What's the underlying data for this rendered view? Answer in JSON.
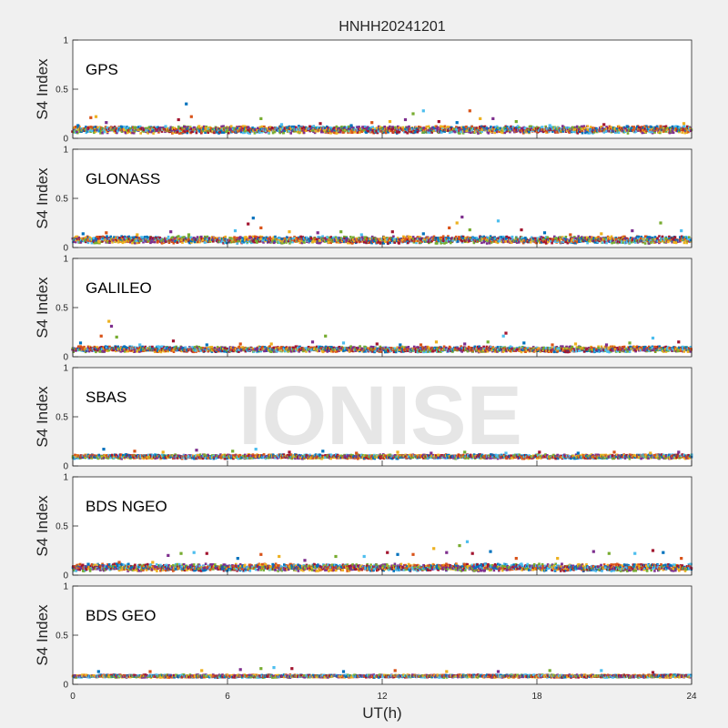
{
  "chart_data": {
    "type": "scatter",
    "title": "HNHH20241201",
    "watermark": "IONISE",
    "xlabel": "UT(h)",
    "ylabel": "S4 Index",
    "xlim": [
      0,
      24
    ],
    "ylim": [
      0,
      1
    ],
    "x_ticks": [
      "0",
      "6",
      "12",
      "18",
      "24"
    ],
    "x_tick_values": [
      0,
      6,
      12,
      18,
      24
    ],
    "y_ticks": [
      "0",
      "0.5",
      "1"
    ],
    "y_tick_values": [
      0,
      0.5,
      1
    ],
    "grid": false,
    "series_colors": [
      "#0072BD",
      "#D95319",
      "#EDB120",
      "#7E2F8E",
      "#77AC30",
      "#4DBEEE",
      "#A2142F"
    ],
    "panels": [
      {
        "label": "GPS",
        "baseline": 0.08,
        "noise": 0.05,
        "points": [
          [
            0.2,
            0.13
          ],
          [
            0.7,
            0.21
          ],
          [
            0.9,
            0.22
          ],
          [
            1.3,
            0.16
          ],
          [
            2.4,
            0.11
          ],
          [
            3.6,
            0.12
          ],
          [
            4.1,
            0.19
          ],
          [
            4.4,
            0.35
          ],
          [
            4.6,
            0.22
          ],
          [
            4.9,
            0.12
          ],
          [
            6.1,
            0.09
          ],
          [
            7.3,
            0.2
          ],
          [
            8.1,
            0.14
          ],
          [
            9.6,
            0.15
          ],
          [
            10.8,
            0.13
          ],
          [
            11.6,
            0.16
          ],
          [
            12.3,
            0.17
          ],
          [
            12.9,
            0.19
          ],
          [
            13.2,
            0.25
          ],
          [
            13.6,
            0.28
          ],
          [
            14.2,
            0.17
          ],
          [
            14.9,
            0.16
          ],
          [
            15.4,
            0.28
          ],
          [
            15.8,
            0.2
          ],
          [
            16.3,
            0.2
          ],
          [
            17.2,
            0.17
          ],
          [
            18.5,
            0.13
          ],
          [
            20.6,
            0.14
          ],
          [
            21.5,
            0.12
          ],
          [
            22.8,
            0.12
          ],
          [
            23.7,
            0.15
          ]
        ]
      },
      {
        "label": "GLONASS",
        "baseline": 0.07,
        "noise": 0.05,
        "points": [
          [
            0.4,
            0.14
          ],
          [
            1.3,
            0.15
          ],
          [
            2.5,
            0.13
          ],
          [
            3.8,
            0.16
          ],
          [
            4.5,
            0.13
          ],
          [
            6.3,
            0.17
          ],
          [
            6.8,
            0.24
          ],
          [
            7.0,
            0.3
          ],
          [
            7.3,
            0.2
          ],
          [
            8.4,
            0.16
          ],
          [
            9.5,
            0.15
          ],
          [
            10.4,
            0.16
          ],
          [
            11.2,
            0.13
          ],
          [
            12.4,
            0.16
          ],
          [
            13.6,
            0.14
          ],
          [
            14.6,
            0.2
          ],
          [
            14.9,
            0.25
          ],
          [
            15.1,
            0.31
          ],
          [
            15.4,
            0.18
          ],
          [
            16.5,
            0.27
          ],
          [
            17.4,
            0.18
          ],
          [
            18.3,
            0.15
          ],
          [
            19.3,
            0.13
          ],
          [
            20.5,
            0.14
          ],
          [
            21.7,
            0.17
          ],
          [
            22.8,
            0.25
          ],
          [
            23.6,
            0.17
          ]
        ]
      },
      {
        "label": "GALILEO",
        "baseline": 0.07,
        "noise": 0.04,
        "points": [
          [
            0.3,
            0.14
          ],
          [
            1.1,
            0.21
          ],
          [
            1.4,
            0.36
          ],
          [
            1.5,
            0.31
          ],
          [
            1.7,
            0.2
          ],
          [
            2.6,
            0.12
          ],
          [
            3.9,
            0.16
          ],
          [
            5.2,
            0.12
          ],
          [
            6.5,
            0.13
          ],
          [
            7.7,
            0.13
          ],
          [
            9.3,
            0.15
          ],
          [
            9.8,
            0.21
          ],
          [
            10.5,
            0.14
          ],
          [
            11.8,
            0.13
          ],
          [
            12.7,
            0.12
          ],
          [
            13.5,
            0.12
          ],
          [
            14.1,
            0.15
          ],
          [
            15.2,
            0.13
          ],
          [
            16.1,
            0.15
          ],
          [
            16.7,
            0.21
          ],
          [
            16.8,
            0.24
          ],
          [
            17.5,
            0.14
          ],
          [
            18.6,
            0.12
          ],
          [
            19.5,
            0.13
          ],
          [
            20.7,
            0.12
          ],
          [
            21.6,
            0.14
          ],
          [
            22.5,
            0.19
          ],
          [
            23.5,
            0.15
          ]
        ]
      },
      {
        "label": "SBAS",
        "baseline": 0.09,
        "noise": 0.03,
        "points": [
          [
            1.2,
            0.17
          ],
          [
            2.4,
            0.15
          ],
          [
            3.5,
            0.14
          ],
          [
            4.8,
            0.16
          ],
          [
            6.2,
            0.15
          ],
          [
            7.1,
            0.17
          ],
          [
            8.4,
            0.14
          ],
          [
            9.7,
            0.15
          ],
          [
            11.0,
            0.13
          ],
          [
            12.6,
            0.14
          ],
          [
            13.9,
            0.13
          ],
          [
            15.2,
            0.14
          ],
          [
            16.8,
            0.13
          ],
          [
            18.1,
            0.14
          ],
          [
            19.6,
            0.13
          ],
          [
            21.0,
            0.14
          ],
          [
            22.4,
            0.13
          ],
          [
            23.5,
            0.14
          ]
        ]
      },
      {
        "label": "BDS NGEO",
        "baseline": 0.07,
        "noise": 0.05,
        "points": [
          [
            0.6,
            0.11
          ],
          [
            1.8,
            0.13
          ],
          [
            3.1,
            0.13
          ],
          [
            3.7,
            0.2
          ],
          [
            4.2,
            0.22
          ],
          [
            4.7,
            0.23
          ],
          [
            5.2,
            0.22
          ],
          [
            6.4,
            0.17
          ],
          [
            7.3,
            0.21
          ],
          [
            8.0,
            0.19
          ],
          [
            9.0,
            0.15
          ],
          [
            10.2,
            0.19
          ],
          [
            11.3,
            0.19
          ],
          [
            12.2,
            0.23
          ],
          [
            12.6,
            0.21
          ],
          [
            13.2,
            0.21
          ],
          [
            14.0,
            0.27
          ],
          [
            14.5,
            0.23
          ],
          [
            15.0,
            0.3
          ],
          [
            15.3,
            0.34
          ],
          [
            15.5,
            0.22
          ],
          [
            16.2,
            0.24
          ],
          [
            17.2,
            0.17
          ],
          [
            18.8,
            0.17
          ],
          [
            20.2,
            0.24
          ],
          [
            20.8,
            0.22
          ],
          [
            21.8,
            0.22
          ],
          [
            22.5,
            0.25
          ],
          [
            22.9,
            0.23
          ],
          [
            23.6,
            0.17
          ]
        ]
      },
      {
        "label": "BDS GEO",
        "baseline": 0.08,
        "noise": 0.02,
        "points": [
          [
            1.0,
            0.13
          ],
          [
            3.0,
            0.13
          ],
          [
            5.0,
            0.14
          ],
          [
            6.5,
            0.15
          ],
          [
            7.3,
            0.16
          ],
          [
            7.8,
            0.17
          ],
          [
            8.5,
            0.16
          ],
          [
            10.5,
            0.13
          ],
          [
            12.5,
            0.14
          ],
          [
            14.5,
            0.13
          ],
          [
            16.5,
            0.13
          ],
          [
            18.5,
            0.14
          ],
          [
            20.5,
            0.14
          ],
          [
            22.5,
            0.12
          ]
        ]
      }
    ]
  }
}
